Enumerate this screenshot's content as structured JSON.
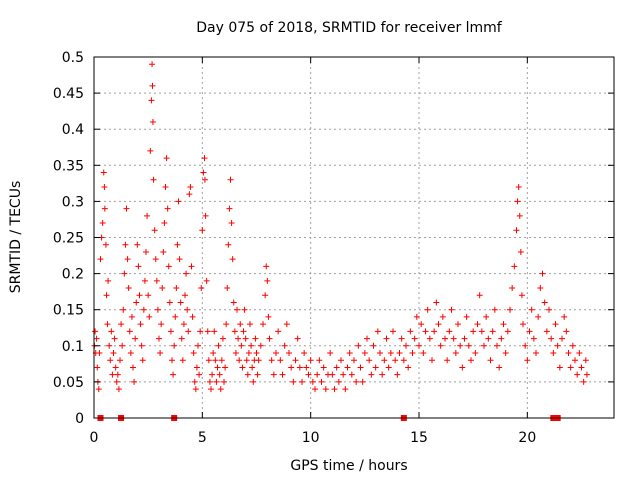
{
  "chart_data": {
    "type": "scatter",
    "title": "Day 075 of 2018, SRMTID for receiver lmmf",
    "xlabel": "GPS time / hours",
    "ylabel": "SRMTID / TECUs",
    "xlim": [
      0,
      24
    ],
    "ylim": [
      0,
      0.5
    ],
    "x_ticks": [
      0,
      5,
      10,
      15,
      20
    ],
    "y_ticks": [
      0,
      0.05,
      0.1,
      0.15,
      0.2,
      0.25,
      0.3,
      0.35,
      0.4,
      0.45,
      0.5
    ],
    "y_tick_labels": [
      "0",
      "0.05",
      "0.1",
      "0.15",
      "0.2",
      "0.25",
      "0.3",
      "0.35",
      "0.4",
      "0.45",
      "0.5"
    ],
    "grid": true,
    "marker": "+",
    "color": "#ff0000",
    "series": [
      {
        "name": "SRMTID",
        "points": [
          [
            0.02,
            0.1
          ],
          [
            0.05,
            0.12
          ],
          [
            0.08,
            0.09
          ],
          [
            0.12,
            0.11
          ],
          [
            0.15,
            0.07
          ],
          [
            0.18,
            0.05
          ],
          [
            0.22,
            0.04
          ],
          [
            0.25,
            0.09
          ],
          [
            0.3,
            0.22
          ],
          [
            0.35,
            0.25
          ],
          [
            0.4,
            0.27
          ],
          [
            0.45,
            0.34
          ],
          [
            0.48,
            0.32
          ],
          [
            0.5,
            0.29
          ],
          [
            0.55,
            0.24
          ],
          [
            0.58,
            0.17
          ],
          [
            0.62,
            0.13
          ],
          [
            0.65,
            0.19
          ],
          [
            0.7,
            0.1
          ],
          [
            0.75,
            0.08
          ],
          [
            0.8,
            0.12
          ],
          [
            0.85,
            0.06
          ],
          [
            0.9,
            0.09
          ],
          [
            0.95,
            0.11
          ],
          [
            1.0,
            0.07
          ],
          [
            1.05,
            0.05
          ],
          [
            1.1,
            0.06
          ],
          [
            1.15,
            0.04
          ],
          [
            1.2,
            0.08
          ],
          [
            1.25,
            0.13
          ],
          [
            1.3,
            0.1
          ],
          [
            1.35,
            0.15
          ],
          [
            1.4,
            0.2
          ],
          [
            1.45,
            0.24
          ],
          [
            1.5,
            0.29
          ],
          [
            1.55,
            0.22
          ],
          [
            1.6,
            0.18
          ],
          [
            1.65,
            0.12
          ],
          [
            1.7,
            0.09
          ],
          [
            1.75,
            0.14
          ],
          [
            1.8,
            0.07
          ],
          [
            1.85,
            0.05
          ],
          [
            1.9,
            0.11
          ],
          [
            1.95,
            0.16
          ],
          [
            2.0,
            0.24
          ],
          [
            2.05,
            0.21
          ],
          [
            2.1,
            0.17
          ],
          [
            2.15,
            0.13
          ],
          [
            2.2,
            0.1
          ],
          [
            2.25,
            0.08
          ],
          [
            2.3,
            0.15
          ],
          [
            2.35,
            0.19
          ],
          [
            2.4,
            0.23
          ],
          [
            2.45,
            0.28
          ],
          [
            2.5,
            0.17
          ],
          [
            2.55,
            0.14
          ],
          [
            2.6,
            0.37
          ],
          [
            2.65,
            0.44
          ],
          [
            2.68,
            0.49
          ],
          [
            2.7,
            0.46
          ],
          [
            2.72,
            0.41
          ],
          [
            2.75,
            0.33
          ],
          [
            2.8,
            0.26
          ],
          [
            2.85,
            0.22
          ],
          [
            2.9,
            0.19
          ],
          [
            2.95,
            0.15
          ],
          [
            3.0,
            0.11
          ],
          [
            3.05,
            0.09
          ],
          [
            3.1,
            0.13
          ],
          [
            3.15,
            0.18
          ],
          [
            3.2,
            0.23
          ],
          [
            3.25,
            0.27
          ],
          [
            3.3,
            0.32
          ],
          [
            3.35,
            0.36
          ],
          [
            3.4,
            0.29
          ],
          [
            3.45,
            0.21
          ],
          [
            3.5,
            0.16
          ],
          [
            3.55,
            0.12
          ],
          [
            3.6,
            0.08
          ],
          [
            3.65,
            0.06
          ],
          [
            3.7,
            0.1
          ],
          [
            3.75,
            0.14
          ],
          [
            3.8,
            0.18
          ],
          [
            3.85,
            0.24
          ],
          [
            3.9,
            0.3
          ],
          [
            3.95,
            0.22
          ],
          [
            4.0,
            0.16
          ],
          [
            4.05,
            0.11
          ],
          [
            4.1,
            0.08
          ],
          [
            4.15,
            0.13
          ],
          [
            4.2,
            0.17
          ],
          [
            4.25,
            0.2
          ],
          [
            4.3,
            0.15
          ],
          [
            4.35,
            0.12
          ],
          [
            4.4,
            0.31
          ],
          [
            4.45,
            0.32
          ],
          [
            4.5,
            0.21
          ],
          [
            4.55,
            0.14
          ],
          [
            4.6,
            0.09
          ],
          [
            4.65,
            0.05
          ],
          [
            4.7,
            0.04
          ],
          [
            4.75,
            0.07
          ],
          [
            4.8,
            0.1
          ],
          [
            4.85,
            0.06
          ],
          [
            4.9,
            0.12
          ],
          [
            4.95,
            0.18
          ],
          [
            5.0,
            0.26
          ],
          [
            5.05,
            0.34
          ],
          [
            5.1,
            0.36
          ],
          [
            5.12,
            0.33
          ],
          [
            5.15,
            0.28
          ],
          [
            5.2,
            0.19
          ],
          [
            5.25,
            0.12
          ],
          [
            5.3,
            0.08
          ],
          [
            5.35,
            0.05
          ],
          [
            5.4,
            0.04
          ],
          [
            5.45,
            0.06
          ],
          [
            5.5,
            0.09
          ],
          [
            5.55,
            0.12
          ],
          [
            5.6,
            0.08
          ],
          [
            5.65,
            0.05
          ],
          [
            5.7,
            0.07
          ],
          [
            5.75,
            0.1
          ],
          [
            5.8,
            0.06
          ],
          [
            5.85,
            0.04
          ],
          [
            5.9,
            0.08
          ],
          [
            5.95,
            0.11
          ],
          [
            6.0,
            0.05
          ],
          [
            6.05,
            0.07
          ],
          [
            6.1,
            0.13
          ],
          [
            6.15,
            0.18
          ],
          [
            6.2,
            0.24
          ],
          [
            6.25,
            0.29
          ],
          [
            6.3,
            0.33
          ],
          [
            6.35,
            0.27
          ],
          [
            6.4,
            0.22
          ],
          [
            6.45,
            0.16
          ],
          [
            6.5,
            0.12
          ],
          [
            6.55,
            0.09
          ],
          [
            6.6,
            0.15
          ],
          [
            6.65,
            0.11
          ],
          [
            6.7,
            0.08
          ],
          [
            6.75,
            0.13
          ],
          [
            6.8,
            0.1
          ],
          [
            6.85,
            0.07
          ],
          [
            6.9,
            0.12
          ],
          [
            6.95,
            0.15
          ],
          [
            7.0,
            0.11
          ],
          [
            7.05,
            0.08
          ],
          [
            7.1,
            0.06
          ],
          [
            7.15,
            0.09
          ],
          [
            7.2,
            0.13
          ],
          [
            7.25,
            0.1
          ],
          [
            7.3,
            0.07
          ],
          [
            7.35,
            0.05
          ],
          [
            7.4,
            0.08
          ],
          [
            7.45,
            0.11
          ],
          [
            7.5,
            0.09
          ],
          [
            7.55,
            0.06
          ],
          [
            7.6,
            0.08
          ],
          [
            7.7,
            0.1
          ],
          [
            7.8,
            0.13
          ],
          [
            7.9,
            0.17
          ],
          [
            7.95,
            0.21
          ],
          [
            8.0,
            0.19
          ],
          [
            8.05,
            0.14
          ],
          [
            8.1,
            0.11
          ],
          [
            8.2,
            0.08
          ],
          [
            8.3,
            0.06
          ],
          [
            8.4,
            0.09
          ],
          [
            8.5,
            0.12
          ],
          [
            8.6,
            0.08
          ],
          [
            8.7,
            0.06
          ],
          [
            8.8,
            0.1
          ],
          [
            8.9,
            0.13
          ],
          [
            9.0,
            0.09
          ],
          [
            9.1,
            0.07
          ],
          [
            9.2,
            0.05
          ],
          [
            9.3,
            0.08
          ],
          [
            9.4,
            0.11
          ],
          [
            9.5,
            0.07
          ],
          [
            9.6,
            0.05
          ],
          [
            9.7,
            0.09
          ],
          [
            9.8,
            0.07
          ],
          [
            9.9,
            0.06
          ],
          [
            10.0,
            0.08
          ],
          [
            10.1,
            0.05
          ],
          [
            10.2,
            0.04
          ],
          [
            10.3,
            0.06
          ],
          [
            10.4,
            0.08
          ],
          [
            10.5,
            0.05
          ],
          [
            10.6,
            0.07
          ],
          [
            10.7,
            0.04
          ],
          [
            10.8,
            0.06
          ],
          [
            10.9,
            0.09
          ],
          [
            11.0,
            0.06
          ],
          [
            11.1,
            0.04
          ],
          [
            11.2,
            0.07
          ],
          [
            11.3,
            0.05
          ],
          [
            11.4,
            0.08
          ],
          [
            11.5,
            0.06
          ],
          [
            11.6,
            0.04
          ],
          [
            11.7,
            0.07
          ],
          [
            11.8,
            0.09
          ],
          [
            11.9,
            0.06
          ],
          [
            12.0,
            0.08
          ],
          [
            12.1,
            0.05
          ],
          [
            12.2,
            0.1
          ],
          [
            12.3,
            0.07
          ],
          [
            12.4,
            0.05
          ],
          [
            12.5,
            0.09
          ],
          [
            12.6,
            0.11
          ],
          [
            12.7,
            0.08
          ],
          [
            12.8,
            0.06
          ],
          [
            12.9,
            0.1
          ],
          [
            13.0,
            0.07
          ],
          [
            13.1,
            0.12
          ],
          [
            13.2,
            0.09
          ],
          [
            13.3,
            0.06
          ],
          [
            13.4,
            0.08
          ],
          [
            13.5,
            0.11
          ],
          [
            13.6,
            0.07
          ],
          [
            13.7,
            0.09
          ],
          [
            13.8,
            0.12
          ],
          [
            13.9,
            0.08
          ],
          [
            14.0,
            0.06
          ],
          [
            14.1,
            0.09
          ],
          [
            14.2,
            0.11
          ],
          [
            14.3,
            0.08
          ],
          [
            14.4,
            0.1
          ],
          [
            14.5,
            0.07
          ],
          [
            14.6,
            0.12
          ],
          [
            14.7,
            0.09
          ],
          [
            14.8,
            0.11
          ],
          [
            14.9,
            0.14
          ],
          [
            15.0,
            0.1
          ],
          [
            15.1,
            0.13
          ],
          [
            15.2,
            0.09
          ],
          [
            15.3,
            0.12
          ],
          [
            15.4,
            0.15
          ],
          [
            15.5,
            0.11
          ],
          [
            15.6,
            0.08
          ],
          [
            15.7,
            0.12
          ],
          [
            15.8,
            0.16
          ],
          [
            15.9,
            0.13
          ],
          [
            16.0,
            0.1
          ],
          [
            16.1,
            0.14
          ],
          [
            16.2,
            0.11
          ],
          [
            16.3,
            0.08
          ],
          [
            16.4,
            0.12
          ],
          [
            16.5,
            0.15
          ],
          [
            16.6,
            0.11
          ],
          [
            16.7,
            0.09
          ],
          [
            16.8,
            0.13
          ],
          [
            16.9,
            0.1
          ],
          [
            17.0,
            0.07
          ],
          [
            17.1,
            0.11
          ],
          [
            17.2,
            0.14
          ],
          [
            17.3,
            0.1
          ],
          [
            17.4,
            0.08
          ],
          [
            17.5,
            0.12
          ],
          [
            17.6,
            0.09
          ],
          [
            17.7,
            0.13
          ],
          [
            17.8,
            0.17
          ],
          [
            17.9,
            0.12
          ],
          [
            18.0,
            0.1
          ],
          [
            18.1,
            0.14
          ],
          [
            18.2,
            0.11
          ],
          [
            18.3,
            0.08
          ],
          [
            18.4,
            0.12
          ],
          [
            18.5,
            0.15
          ],
          [
            18.6,
            0.1
          ],
          [
            18.7,
            0.07
          ],
          [
            18.8,
            0.11
          ],
          [
            18.9,
            0.13
          ],
          [
            19.0,
            0.09
          ],
          [
            19.1,
            0.12
          ],
          [
            19.2,
            0.15
          ],
          [
            19.3,
            0.18
          ],
          [
            19.4,
            0.21
          ],
          [
            19.5,
            0.26
          ],
          [
            19.55,
            0.3
          ],
          [
            19.6,
            0.32
          ],
          [
            19.65,
            0.28
          ],
          [
            19.7,
            0.23
          ],
          [
            19.75,
            0.17
          ],
          [
            19.8,
            0.13
          ],
          [
            19.9,
            0.1
          ],
          [
            20.0,
            0.08
          ],
          [
            20.1,
            0.12
          ],
          [
            20.2,
            0.15
          ],
          [
            20.3,
            0.11
          ],
          [
            20.4,
            0.09
          ],
          [
            20.5,
            0.14
          ],
          [
            20.6,
            0.18
          ],
          [
            20.7,
            0.2
          ],
          [
            20.8,
            0.16
          ],
          [
            20.9,
            0.12
          ],
          [
            21.0,
            0.15
          ],
          [
            21.1,
            0.11
          ],
          [
            21.2,
            0.09
          ],
          [
            21.3,
            0.13
          ],
          [
            21.4,
            0.1
          ],
          [
            21.5,
            0.07
          ],
          [
            21.6,
            0.11
          ],
          [
            21.7,
            0.14
          ],
          [
            21.8,
            0.12
          ],
          [
            21.9,
            0.09
          ],
          [
            22.0,
            0.07
          ],
          [
            22.1,
            0.1
          ],
          [
            22.2,
            0.08
          ],
          [
            22.3,
            0.06
          ],
          [
            22.4,
            0.09
          ],
          [
            22.5,
            0.07
          ],
          [
            22.6,
            0.05
          ],
          [
            22.7,
            0.08
          ],
          [
            22.75,
            0.06
          ]
        ]
      }
    ],
    "outages": [
      0.3,
      1.25,
      3.7,
      14.3,
      21.2,
      21.4
    ]
  }
}
